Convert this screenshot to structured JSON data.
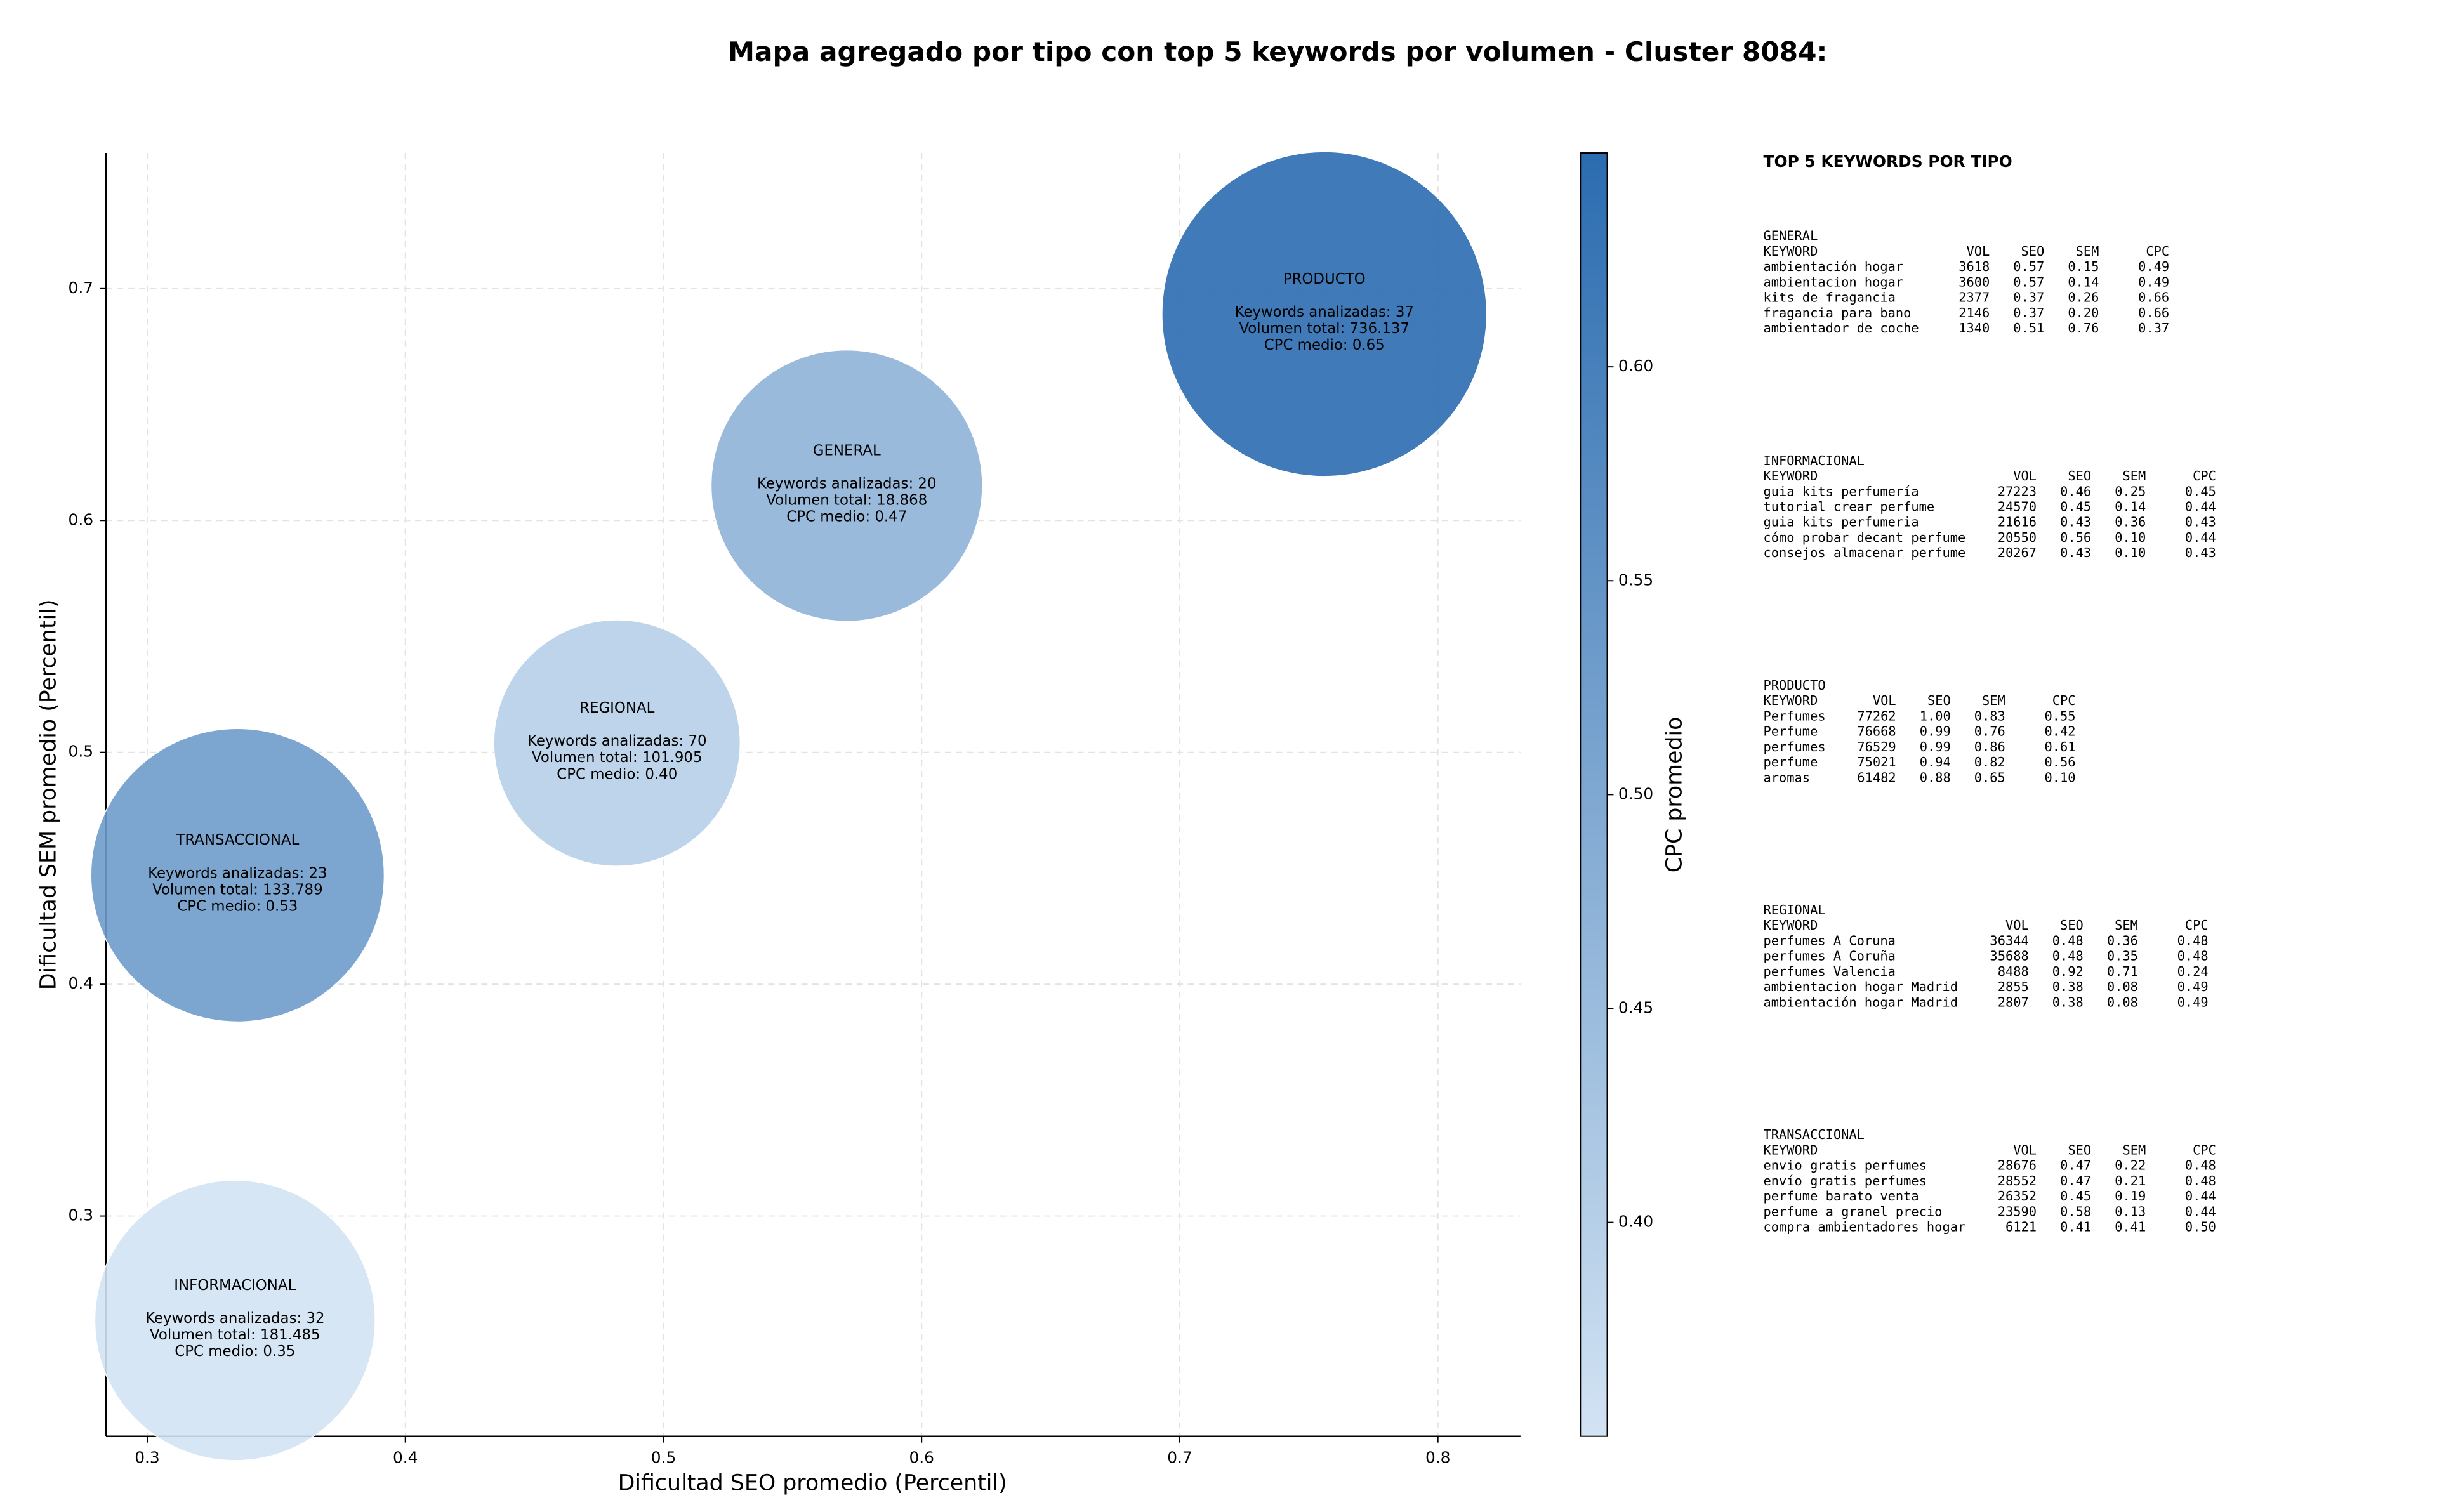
{
  "chart_data": {
    "type": "bubble",
    "title": "Mapa agregado por tipo con top 5 keywords por volumen - Cluster 8084:",
    "x_label": "Dificultad SEO promedio (Percentil)",
    "y_label": "Dificultad SEM promedio (Percentil)",
    "xlim": [
      0.284,
      0.832
    ],
    "ylim": [
      0.205,
      0.7585
    ],
    "xticks": [
      0.3,
      0.4,
      0.5,
      0.6,
      0.7,
      0.8
    ],
    "yticks": [
      0.3,
      0.4,
      0.5,
      0.6,
      0.7
    ],
    "grid": true,
    "categories": [
      "PRODUCTO",
      "GENERAL",
      "REGIONAL",
      "TRANSACCIONAL",
      "INFORMACIONAL"
    ],
    "x": [
      0.756,
      0.571,
      0.482,
      0.335,
      0.334
    ],
    "values": [
      0.689,
      0.615,
      0.504,
      0.447,
      0.255
    ],
    "sizes": [
      10600,
      7400,
      6100,
      8650,
      7900
    ],
    "cpc": [
      0.65,
      0.47,
      0.4,
      0.53,
      0.35
    ],
    "annotations": [
      [
        "Keywords analizadas: 37",
        "Volumen total: 736.137",
        "CPC medio: 0.65"
      ],
      [
        "Keywords analizadas: 20",
        "Volumen total: 18.868",
        "CPC medio: 0.47"
      ],
      [
        "Keywords analizadas: 70",
        "Volumen total: 101.905",
        "CPC medio: 0.40"
      ],
      [
        "Keywords analizadas: 23",
        "Volumen total: 133.789",
        "CPC medio: 0.53"
      ],
      [
        "Keywords analizadas: 32",
        "Volumen total: 181.485",
        "CPC medio: 0.35"
      ]
    ],
    "colorbar": {
      "label": "CPC promedio",
      "lim": [
        0.35,
        0.65
      ],
      "colors": [
        "#d2e3f3",
        "#2b6cb0"
      ],
      "ticks": [
        {
          "value": 0.4,
          "label": "0.40"
        },
        {
          "value": 0.45,
          "label": "0.45"
        },
        {
          "value": 0.5,
          "label": "0.50"
        },
        {
          "value": 0.55,
          "label": "0.55"
        },
        {
          "value": 0.6,
          "label": "0.60"
        }
      ]
    }
  },
  "panel": {
    "title": "TOP 5 KEYWORDS POR TIPO",
    "header": [
      "KEYWORD",
      "VOL",
      "SEO",
      "SEM",
      "CPC"
    ],
    "sections": [
      {
        "name": "GENERAL",
        "rows": [
          [
            "ambientación hogar",
            "3618",
            "0.57",
            "0.15",
            "0.49"
          ],
          [
            "ambientacion hogar",
            "3600",
            "0.57",
            "0.14",
            "0.49"
          ],
          [
            "kits de fragancia",
            "2377",
            "0.37",
            "0.26",
            "0.66"
          ],
          [
            "fragancia para bano",
            "2146",
            "0.37",
            "0.20",
            "0.66"
          ],
          [
            "ambientador de coche",
            "1340",
            "0.51",
            "0.76",
            "0.37"
          ]
        ]
      },
      {
        "name": "INFORMACIONAL",
        "rows": [
          [
            "guia kits perfumería",
            "27223",
            "0.46",
            "0.25",
            "0.45"
          ],
          [
            "tutorial crear perfume",
            "24570",
            "0.45",
            "0.14",
            "0.44"
          ],
          [
            "guia kits perfumeria",
            "21616",
            "0.43",
            "0.36",
            "0.43"
          ],
          [
            "cómo probar decant perfume",
            "20550",
            "0.56",
            "0.10",
            "0.44"
          ],
          [
            "consejos almacenar perfume",
            "20267",
            "0.43",
            "0.10",
            "0.43"
          ]
        ]
      },
      {
        "name": "PRODUCTO",
        "rows": [
          [
            "Perfumes",
            "77262",
            "1.00",
            "0.83",
            "0.55"
          ],
          [
            "Perfume",
            "76668",
            "0.99",
            "0.76",
            "0.42"
          ],
          [
            "perfumes",
            "76529",
            "0.99",
            "0.86",
            "0.61"
          ],
          [
            "perfume",
            "75021",
            "0.94",
            "0.82",
            "0.56"
          ],
          [
            "aromas",
            "61482",
            "0.88",
            "0.65",
            "0.10"
          ]
        ]
      },
      {
        "name": "REGIONAL",
        "rows": [
          [
            "perfumes A Coruna",
            "36344",
            "0.48",
            "0.36",
            "0.48"
          ],
          [
            "perfumes A Coruña",
            "35688",
            "0.48",
            "0.35",
            "0.48"
          ],
          [
            "perfumes Valencia",
            "8488",
            "0.92",
            "0.71",
            "0.24"
          ],
          [
            "ambientacion hogar Madrid",
            "2855",
            "0.38",
            "0.08",
            "0.49"
          ],
          [
            "ambientación hogar Madrid",
            "2807",
            "0.38",
            "0.08",
            "0.49"
          ]
        ]
      },
      {
        "name": "TRANSACCIONAL",
        "rows": [
          [
            "envio gratis perfumes",
            "28676",
            "0.47",
            "0.22",
            "0.48"
          ],
          [
            "envío gratis perfumes",
            "28552",
            "0.47",
            "0.21",
            "0.48"
          ],
          [
            "perfume barato venta",
            "26352",
            "0.45",
            "0.19",
            "0.44"
          ],
          [
            "perfume a granel precio",
            "23590",
            "0.58",
            "0.13",
            "0.44"
          ],
          [
            "compra ambientadores hogar",
            "6121",
            "0.41",
            "0.41",
            "0.50"
          ]
        ]
      }
    ]
  }
}
